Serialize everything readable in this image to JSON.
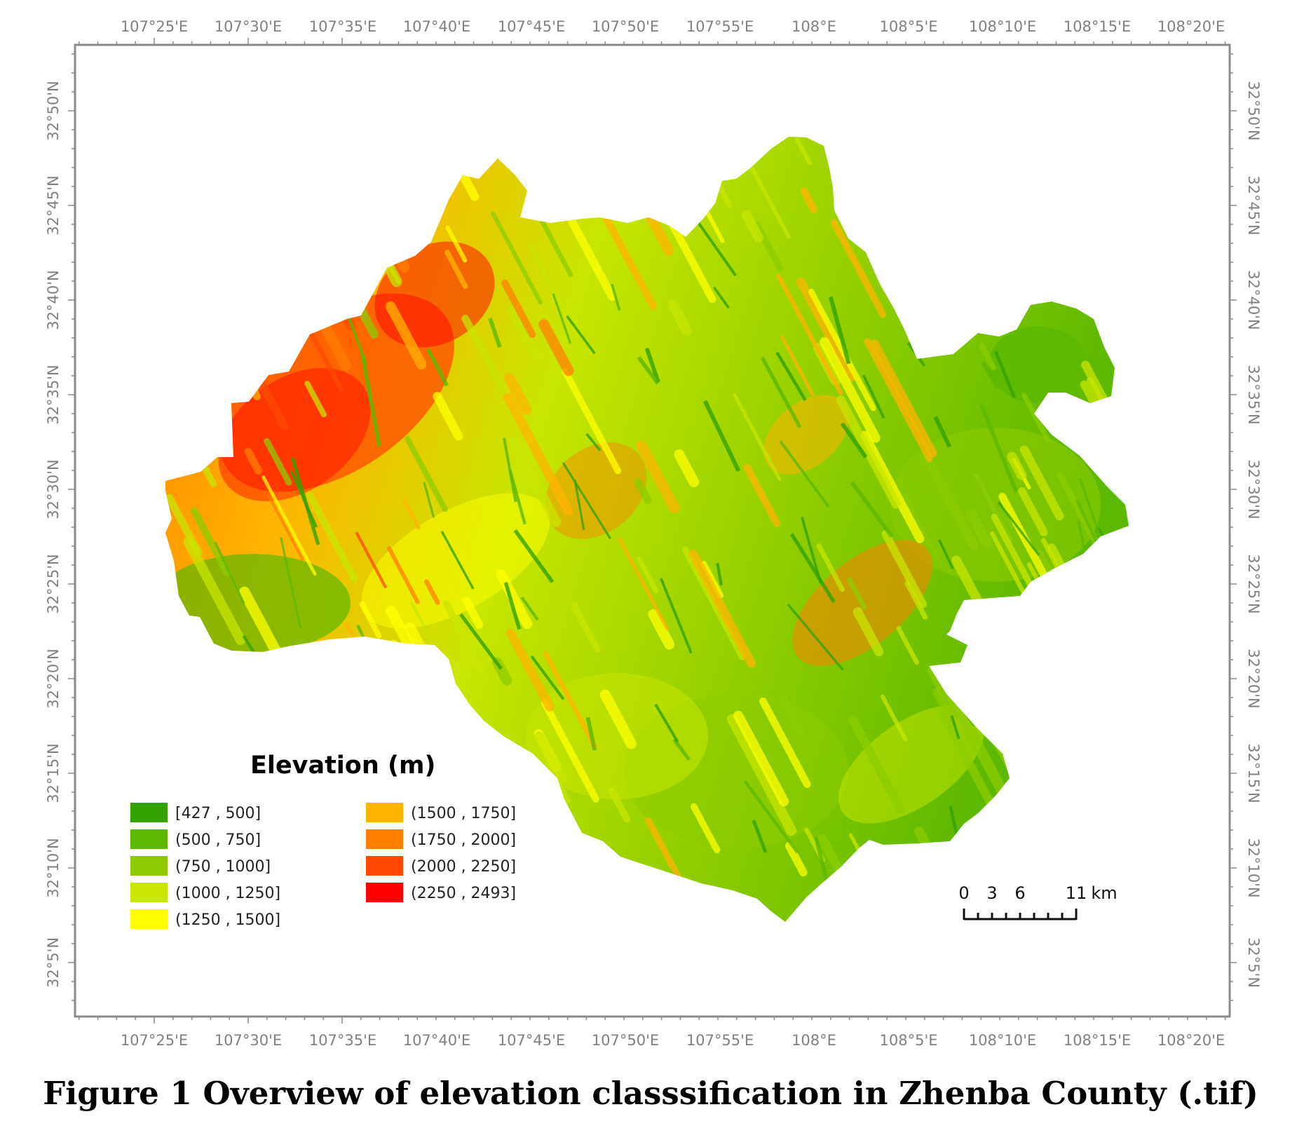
{
  "map": {
    "lon_labels": [
      "107°25'E",
      "107°30'E",
      "107°35'E",
      "107°40'E",
      "107°45'E",
      "107°50'E",
      "107°55'E",
      "108°E",
      "108°5'E",
      "108°10'E",
      "108°15'E",
      "108°20'E"
    ],
    "lat_labels": [
      "32°50'N",
      "32°45'N",
      "32°40'N",
      "32°35'N",
      "32°30'N",
      "32°25'N",
      "32°20'N",
      "32°15'N",
      "32°10'N",
      "32°5'N"
    ]
  },
  "legend": {
    "title": "Elevation (m)",
    "classes": [
      {
        "label": "[427 , 500]",
        "color": "#33a300"
      },
      {
        "label": "(500 , 750]",
        "color": "#5cb800"
      },
      {
        "label": "(750 , 1000]",
        "color": "#8ccc00"
      },
      {
        "label": "(1000 , 1250]",
        "color": "#c8e600"
      },
      {
        "label": "(1250 , 1500]",
        "color": "#ffff00"
      },
      {
        "label": "(1500 , 1750]",
        "color": "#ffb400"
      },
      {
        "label": "(1750 , 2000]",
        "color": "#ff8000"
      },
      {
        "label": "(2000 , 2250]",
        "color": "#ff4a00"
      },
      {
        "label": "(2250 , 2493]",
        "color": "#ff0000"
      }
    ]
  },
  "scale_bar": {
    "labels": [
      "0",
      "3",
      "6",
      "11"
    ],
    "unit": "km"
  },
  "caption": "Figure 1  Overview of elevation classsification in Zhenba County (.tif)"
}
